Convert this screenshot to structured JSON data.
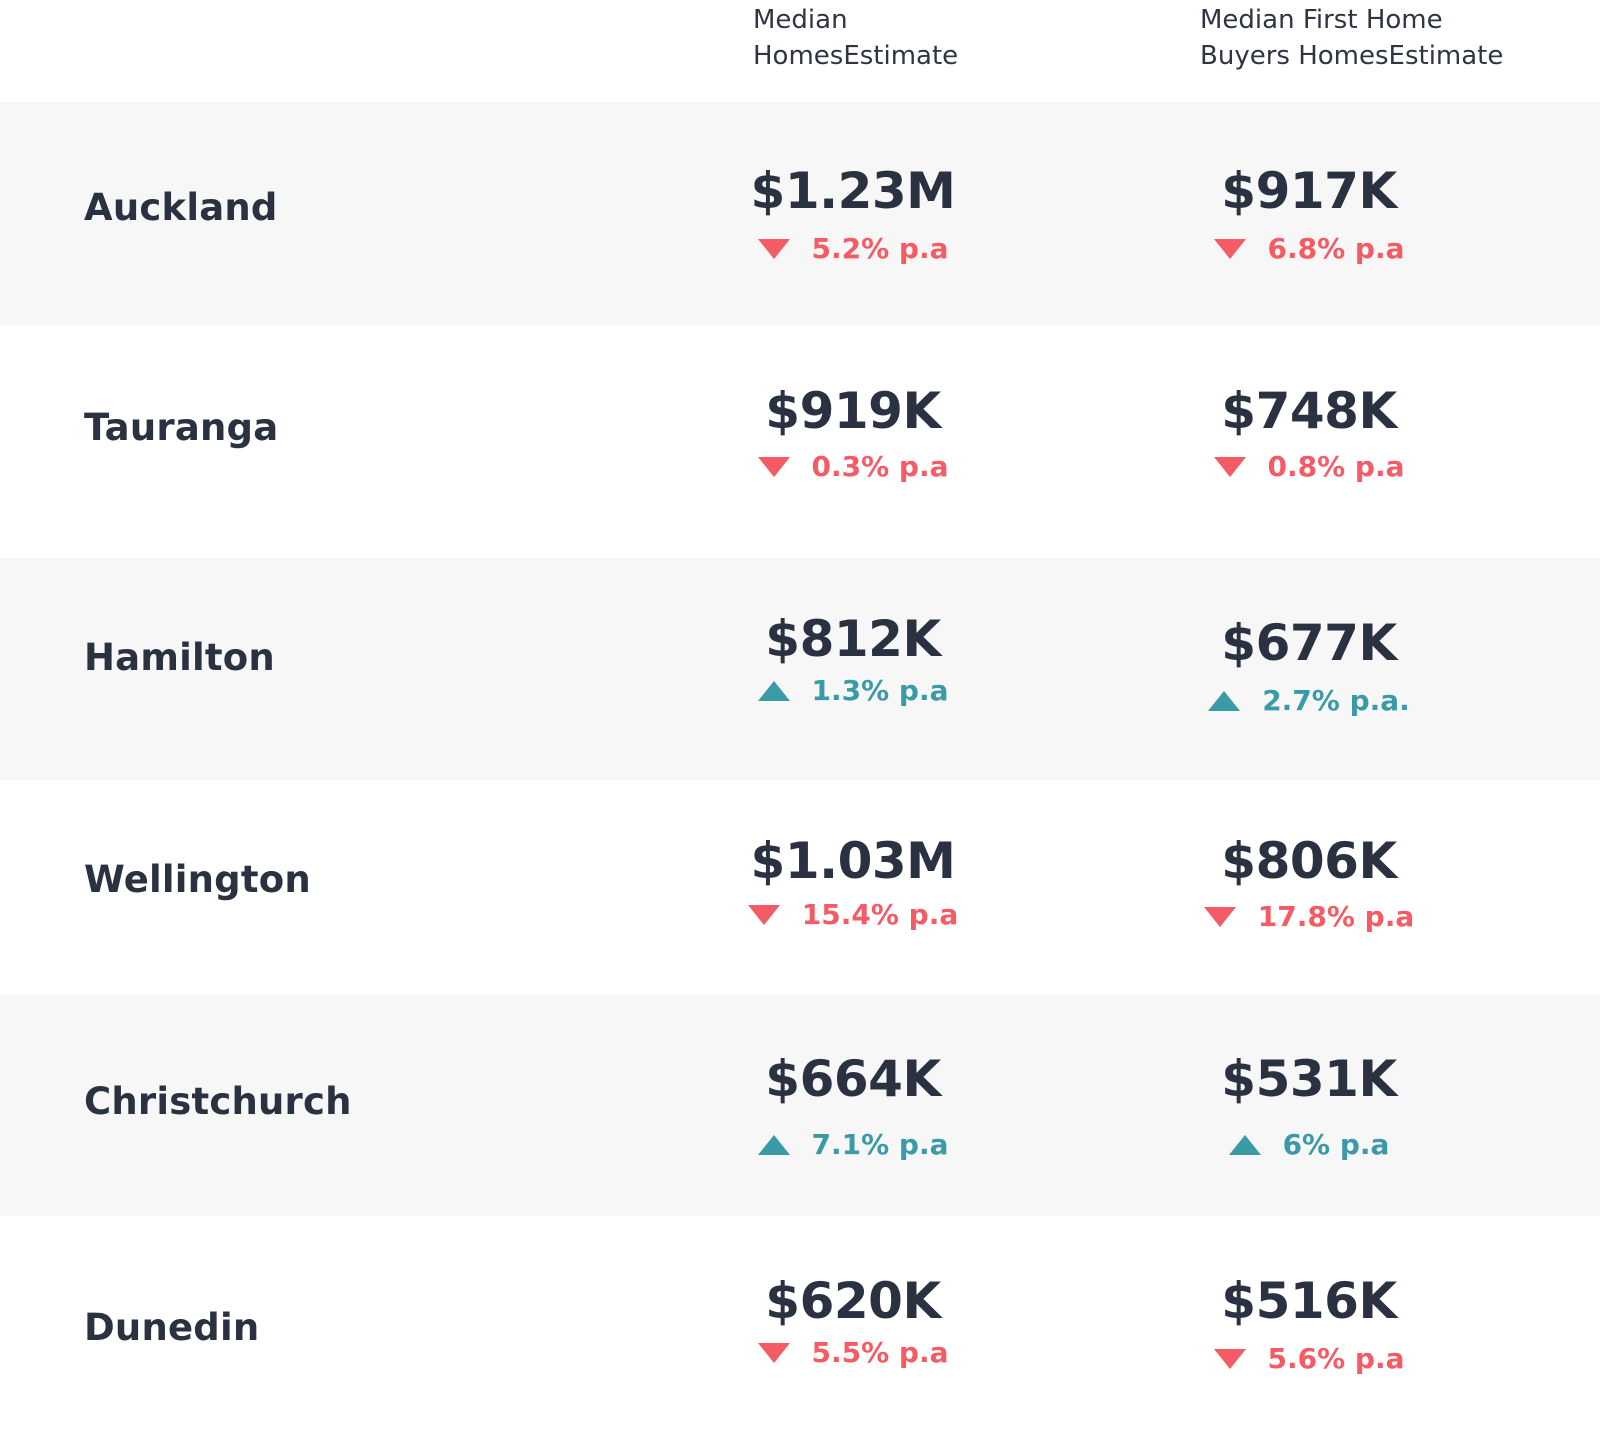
{
  "header": {
    "col1_line1": "Median",
    "col1_line2": "HomesEstimate",
    "col2_line1": "Median First Home",
    "col2_line2": "Buyers HomesEstimate"
  },
  "colors": {
    "down": "#f45b64",
    "up": "#3a9aa8",
    "row_shade": "#f7f7f7",
    "text": "#2a3140"
  },
  "rows": [
    {
      "city": "Auckland",
      "median": {
        "value": "$1.23M",
        "change": "5.2% p.a",
        "direction": "down"
      },
      "first_home": {
        "value": "$917K",
        "change": "6.8% p.a",
        "direction": "down"
      }
    },
    {
      "city": "Tauranga",
      "median": {
        "value": "$919K",
        "change": "0.3% p.a",
        "direction": "down"
      },
      "first_home": {
        "value": "$748K",
        "change": "0.8% p.a",
        "direction": "down"
      }
    },
    {
      "city": "Hamilton",
      "median": {
        "value": "$812K",
        "change": "1.3% p.a",
        "direction": "up"
      },
      "first_home": {
        "value": "$677K",
        "change": "2.7% p.a.",
        "direction": "up"
      }
    },
    {
      "city": "Wellington",
      "median": {
        "value": "$1.03M",
        "change": "15.4% p.a",
        "direction": "down"
      },
      "first_home": {
        "value": "$806K",
        "change": "17.8% p.a",
        "direction": "down"
      }
    },
    {
      "city": "Christchurch",
      "median": {
        "value": "$664K",
        "change": "7.1% p.a",
        "direction": "up"
      },
      "first_home": {
        "value": "$531K",
        "change": "6% p.a",
        "direction": "up"
      }
    },
    {
      "city": "Dunedin",
      "median": {
        "value": "$620K",
        "change": "5.5% p.a",
        "direction": "down"
      },
      "first_home": {
        "value": "$516K",
        "change": "5.6% p.a",
        "direction": "down"
      }
    }
  ]
}
